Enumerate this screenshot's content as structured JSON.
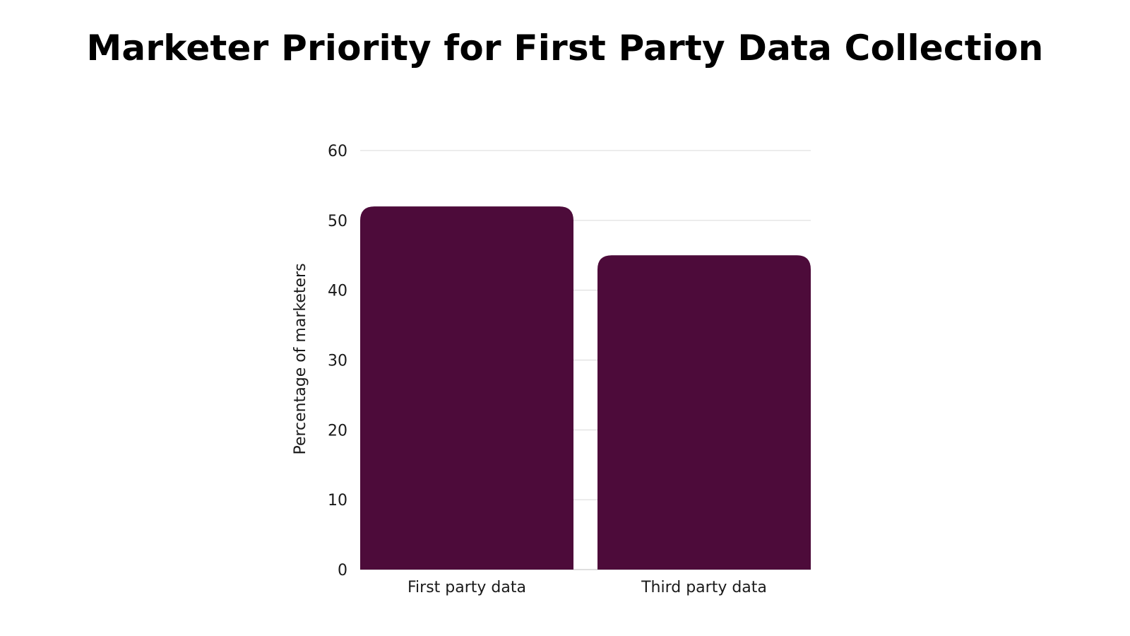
{
  "chart_data": {
    "type": "bar",
    "title": "Marketer Priority for First Party Data Collection",
    "categories": [
      "First party data",
      "Third party data"
    ],
    "values": [
      52,
      45
    ],
    "ylabel": "Percentage of marketers",
    "xlabel": "",
    "ylim": [
      0,
      60
    ],
    "yticks": [
      0,
      10,
      20,
      30,
      40,
      50,
      60
    ],
    "grid": true,
    "legend": "none",
    "bar_color": "#4d0b3a"
  }
}
